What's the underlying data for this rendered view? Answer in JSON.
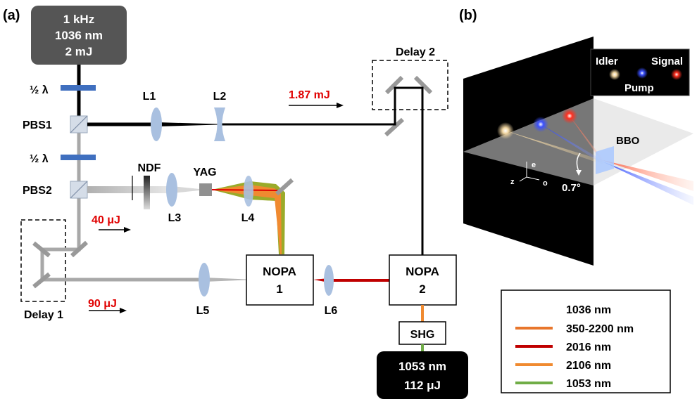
{
  "panel_a": {
    "label": "(a)",
    "laser": {
      "line1": "1 kHz",
      "line2": "1036 nm",
      "line3": "2 mJ"
    },
    "half_wave_1": "½ λ",
    "half_wave_2": "½ λ",
    "pbs1": "PBS1",
    "pbs2": "PBS2",
    "lens_l1": "L1",
    "lens_l2": "L2",
    "lens_l3": "L3",
    "lens_l4": "L4",
    "lens_l5": "L5",
    "lens_l6": "L6",
    "ndf": "NDF",
    "yag": "YAG",
    "delay1": "Delay 1",
    "delay2": "Delay 2",
    "energy_main": "1.87 mJ",
    "energy_40": "40 μJ",
    "energy_90": "90 μJ",
    "nopa1": {
      "line1": "NOPA",
      "line2": "1"
    },
    "nopa2": {
      "line1": "NOPA",
      "line2": "2"
    },
    "shg": "SHG",
    "output": {
      "line1": "1053 nm",
      "line2": "112 μJ"
    }
  },
  "legend": {
    "items": [
      {
        "label": "1036 nm",
        "color": "#000000"
      },
      {
        "label": "350-2200 nm",
        "color": "#e8762c"
      },
      {
        "label": "2016 nm",
        "color": "#c00000"
      },
      {
        "label": "2106 nm",
        "color": "#f08a30"
      },
      {
        "label": "1053 nm",
        "color": "#70ad47"
      }
    ]
  },
  "panel_b": {
    "label": "(b)",
    "idler": "Idler",
    "signal": "Signal",
    "pump": "Pump",
    "crystal": "BBO",
    "angle": "0.7°",
    "axis_e": "e",
    "axis_o": "o",
    "axis_z": "z"
  },
  "colors": {
    "beam_1036": "#000000",
    "beam_2016": "#c00000",
    "beam_2106": "#f08a30",
    "beam_1053": "#70ad47",
    "waveplate": "#3f6fbf",
    "lens": "#a9c0e0",
    "energy_text": "#e00000"
  }
}
